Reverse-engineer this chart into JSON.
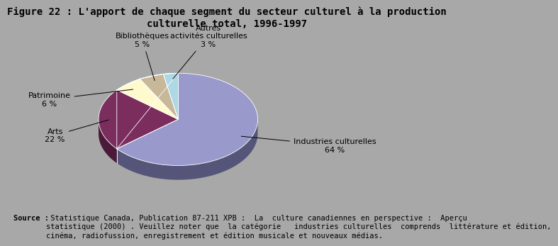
{
  "title": "Figure 22 : L'apport de chaque segment du secteur culturel à la production\nculturelle total, 1996-1997",
  "segments": [
    {
      "label": "Industries culturelles\n64 %",
      "short_label": "Industries culturelles\n64 %",
      "value": 64,
      "color": "#9999CC",
      "dark_color": "#55557A"
    },
    {
      "label": "Arts\n22 %",
      "short_label": "Arts\n22 %",
      "value": 22,
      "color": "#7B2D5E",
      "dark_color": "#4A1A38"
    },
    {
      "label": "Patrimoine\n6 %",
      "short_label": "Patrimoine\n6 %",
      "value": 6,
      "color": "#FFFACD",
      "dark_color": "#CCCA7A"
    },
    {
      "label": "Bibliothèques\n5 %",
      "short_label": "Bibliothèques\n5 %",
      "value": 5,
      "color": "#C8B89A",
      "dark_color": "#806040"
    },
    {
      "label": "Autres\nactivités culturelles\n3 %",
      "short_label": "Autres\nactivités culturelles\n3 %",
      "value": 3,
      "color": "#ADD8E6",
      "dark_color": "#5A8A99"
    }
  ],
  "background_color": "#A8A8A8",
  "title_fontsize": 10,
  "label_fontsize": 8,
  "source_bold": "Source :",
  "source_rest": " Statistique Canada, Publication 87-211 XPB :  La  culture canadiennes en perspective :  Aperçu\nstatistique (2000) . Veuillez noter que  la catégorie   industries culturelles  comprends  littérature et édition,\ncinéma, radiofussion, enregistrement et édition musicale et nouveaux médias.",
  "source_fontsize": 7.5
}
